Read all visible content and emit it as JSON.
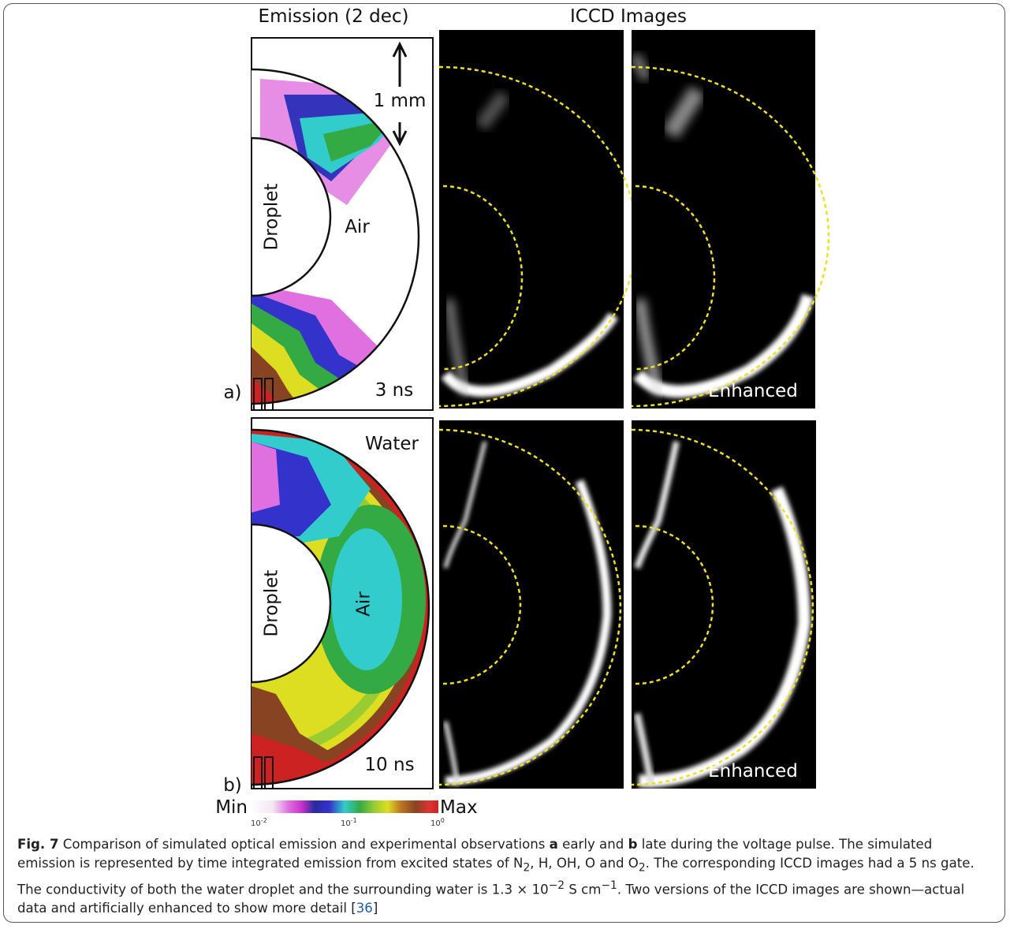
{
  "figure": {
    "column_titles": [
      "Emission (2 dec)",
      "ICCD Images"
    ],
    "panels": [
      {
        "label": "a)",
        "time": "3 ns",
        "scale": "1 mm",
        "droplet": "Droplet",
        "air": "Air",
        "enhanced": "Enhanced"
      },
      {
        "label": "b)",
        "time": "10 ns",
        "water": "Water",
        "droplet": "Droplet",
        "air": "Air",
        "enhanced": "Enhanced"
      }
    ],
    "colorbar": {
      "min": "Min",
      "max": "Max",
      "ticks": [
        {
          "base": "10",
          "exp": "-2"
        },
        {
          "base": "10",
          "exp": "-1"
        },
        {
          "base": "10",
          "exp": "0"
        }
      ]
    }
  },
  "caption": {
    "parts": [
      "Fig. 7",
      " Comparison of simulated optical emission and experimental observations ",
      "a",
      " early and ",
      "b",
      " late during the voltage pulse. The simulated emission is represented by time integrated emission from excited states of N",
      "2",
      ", H, OH, O and O",
      "2",
      ". The corresponding ICCD images had a 5 ns gate. The conductivity of both the water droplet and the surrounding water is 1.3 × 10",
      "−2",
      " S cm",
      "−1",
      ". Two versions of the ICCD images are shown—actual data and artificially enhanced to show more detail [",
      "36",
      "]"
    ]
  }
}
